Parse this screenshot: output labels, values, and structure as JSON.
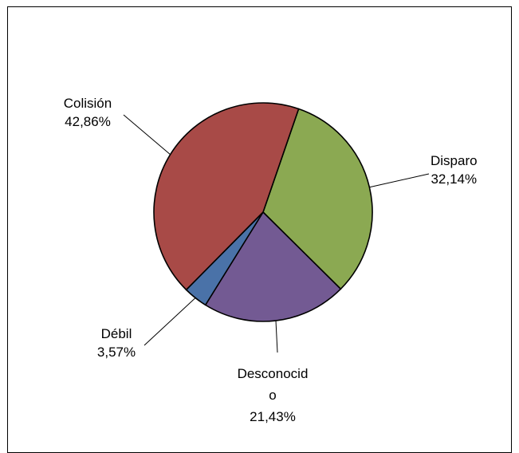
{
  "chart_data": {
    "type": "pie",
    "title": "",
    "slices": [
      {
        "name": "Disparo",
        "value": 32.14,
        "label_value": "32,14%",
        "color": "#8BA952"
      },
      {
        "name": "Desconocido",
        "name_lines": [
          "Desconocid",
          "o"
        ],
        "value": 21.43,
        "label_value": "21,43%",
        "color": "#735A93"
      },
      {
        "name": "Débil",
        "value": 3.57,
        "label_value": "3,57%",
        "color": "#4A72A8"
      },
      {
        "name": "Colisión",
        "value": 42.86,
        "label_value": "42,86%",
        "color": "#A84A47"
      }
    ],
    "start_angle_deg": 19,
    "direction": "clockwise",
    "legend": "none",
    "data_labels": "outside with leader lines"
  }
}
